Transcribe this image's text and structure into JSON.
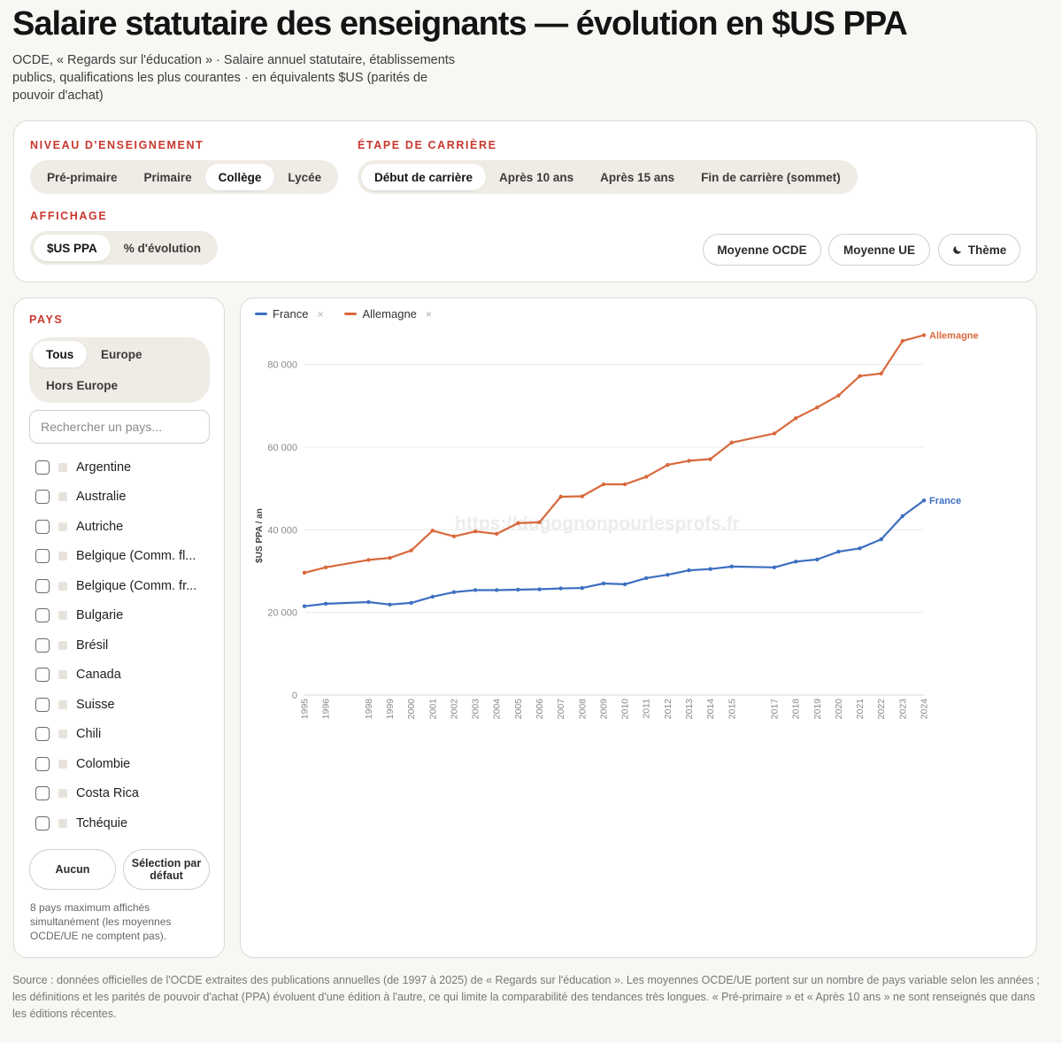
{
  "header": {
    "title": "Salaire statutaire des enseignants — évolution en $US PPA",
    "subtitle": "OCDE, « Regards sur l'éducation » · Salaire annuel statutaire, établissements publics, qualifications les plus courantes · en équivalents $US (parités de pouvoir d'achat)"
  },
  "controls": {
    "niveau_label": "NIVEAU D'ENSEIGNEMENT",
    "niveau_options": [
      "Pré-primaire",
      "Primaire",
      "Collège",
      "Lycée"
    ],
    "niveau_selected": "Collège",
    "etape_label": "ÉTAPE DE CARRIÈRE",
    "etape_options": [
      "Début de carrière",
      "Après 10 ans",
      "Après 15 ans",
      "Fin de carrière (sommet)"
    ],
    "etape_selected": "Début de carrière",
    "affichage_label": "AFFICHAGE",
    "affichage_options": [
      "$US PPA",
      "% d'évolution"
    ],
    "affichage_selected": "$US PPA",
    "moyenne_ocde": "Moyenne OCDE",
    "moyenne_ue": "Moyenne UE",
    "theme": "Thème",
    "theme_icon": "moon-icon"
  },
  "sidebar": {
    "pays_label": "PAYS",
    "filter_options": [
      "Tous",
      "Europe",
      "Hors Europe"
    ],
    "filter_selected": "Tous",
    "search_placeholder": "Rechercher un pays...",
    "countries": [
      "Argentine",
      "Australie",
      "Autriche",
      "Belgique (Comm. fl...",
      "Belgique (Comm. fr...",
      "Bulgarie",
      "Brésil",
      "Canada",
      "Suisse",
      "Chili",
      "Colombie",
      "Costa Rica",
      "Tchéquie"
    ],
    "btn_aucun": "Aucun",
    "btn_defaut": "Sélection par défaut",
    "note": "8 pays maximum affichés simultanément (les moyennes OCDE/UE ne comptent pas)."
  },
  "watermark": "https://dugognonpourlesprofs.fr",
  "chart_data": {
    "type": "line",
    "ylabel": "$US PPA / an",
    "ylim": [
      0,
      90000
    ],
    "yticks": [
      0,
      20000,
      40000,
      60000,
      80000
    ],
    "ytick_labels": [
      "0",
      "20 000",
      "40 000",
      "60 000",
      "80 000"
    ],
    "xlim": [
      1995,
      2024
    ],
    "x": [
      1995,
      1996,
      1998,
      1999,
      2000,
      2001,
      2002,
      2003,
      2004,
      2005,
      2006,
      2007,
      2008,
      2009,
      2010,
      2011,
      2012,
      2013,
      2014,
      2015,
      2017,
      2018,
      2019,
      2020,
      2021,
      2022,
      2023,
      2024
    ],
    "legend_placement": "top-left",
    "grid": true,
    "series": [
      {
        "name": "France",
        "color": "#3d6fc0",
        "values": [
          21500,
          22100,
          22500,
          21900,
          22300,
          23800,
          24900,
          25400,
          25400,
          25500,
          25600,
          25800,
          25900,
          27000,
          26800,
          28300,
          29100,
          30200,
          30500,
          31100,
          30900,
          32300,
          32800,
          34700,
          35500,
          37700,
          43300,
          47100
        ]
      },
      {
        "name": "Allemagne",
        "color": "#d8693d",
        "values": [
          29600,
          30900,
          32700,
          33200,
          35000,
          39800,
          38400,
          39600,
          39000,
          41600,
          41800,
          48000,
          48100,
          51000,
          51000,
          52800,
          55700,
          56700,
          57100,
          61100,
          63300,
          67000,
          69600,
          72500,
          77200,
          77800,
          85700,
          87100
        ]
      }
    ]
  },
  "footer": "Source : données officielles de l'OCDE extraites des publications annuelles (de 1997 à 2025) de « Regards sur l'éducation ». Les moyennes OCDE/UE portent sur un nombre de pays variable selon les années ; les définitions et les parités de pouvoir d'achat (PPA) évoluent d'une édition à l'autre, ce qui limite la comparabilité des tendances très longues. « Pré-primaire » et « Après 10 ans » ne sont renseignés que dans les éditions récentes."
}
